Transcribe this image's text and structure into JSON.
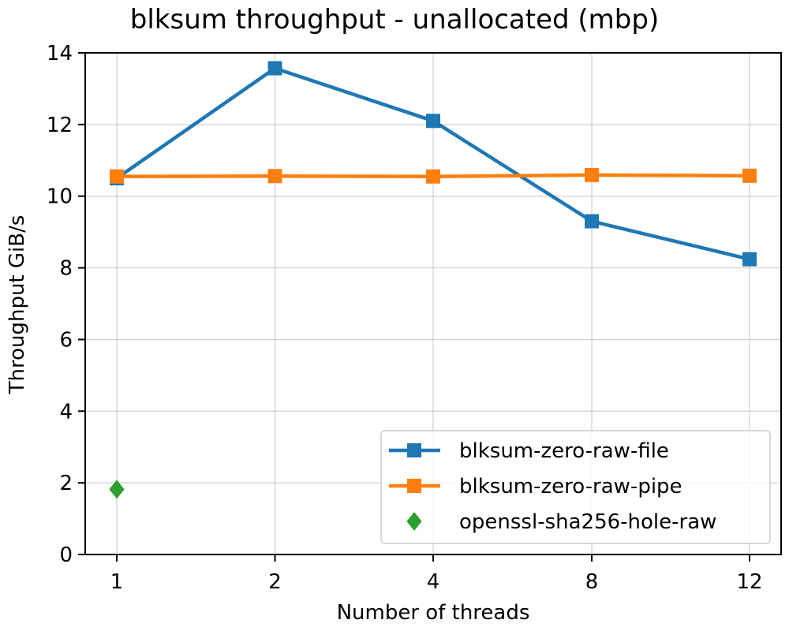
{
  "chart_data": {
    "type": "line",
    "title": "blksum throughput - unallocated (mbp)",
    "xlabel": "Number of threads",
    "ylabel": "Throughput GiB/s",
    "x_ticks": [
      "1",
      "2",
      "4",
      "8",
      "12"
    ],
    "y_ticks": [
      "0",
      "2",
      "4",
      "6",
      "8",
      "10",
      "12",
      "14"
    ],
    "ylim": [
      0,
      14
    ],
    "grid": true,
    "legend_position": "lower-right",
    "series": [
      {
        "name": "blksum-zero-raw-file",
        "color": "#1f77b4",
        "marker": "square",
        "x": [
          "1",
          "2",
          "4",
          "8",
          "12"
        ],
        "values": [
          10.5,
          13.57,
          12.1,
          9.3,
          8.24
        ]
      },
      {
        "name": "blksum-zero-raw-pipe",
        "color": "#ff7f0e",
        "marker": "square",
        "x": [
          "1",
          "2",
          "4",
          "8",
          "12"
        ],
        "values": [
          10.55,
          10.56,
          10.55,
          10.59,
          10.57
        ]
      },
      {
        "name": "openssl-sha256-hole-raw",
        "color": "#2ca02c",
        "marker": "diamond",
        "x": [
          "1"
        ],
        "values": [
          1.82
        ]
      }
    ]
  }
}
